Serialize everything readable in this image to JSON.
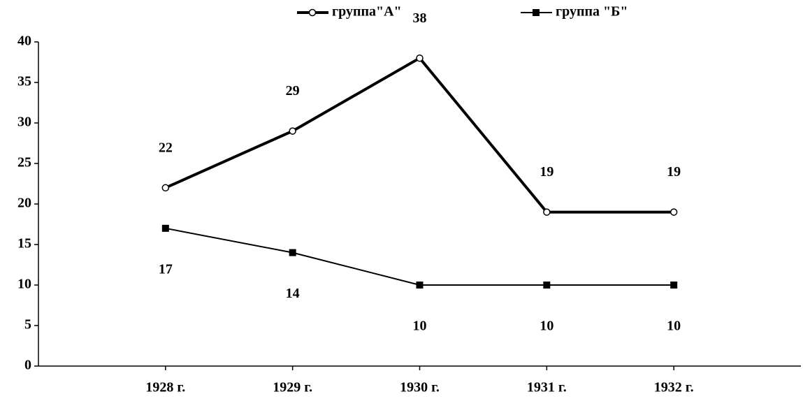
{
  "chart_data": {
    "type": "line",
    "categories": [
      "1928 г.",
      "1929 г.",
      "1930 г.",
      "1931 г.",
      "1932 г."
    ],
    "series": [
      {
        "name": "группа\"А\"",
        "color": "#000000",
        "values": [
          22,
          29,
          38,
          19,
          19
        ]
      },
      {
        "name": "группа \"Б\"",
        "color": "#000000",
        "values": [
          17,
          14,
          10,
          10,
          10
        ]
      }
    ],
    "ylim": [
      0,
      40
    ],
    "yticks": [
      0,
      5,
      10,
      15,
      20,
      25,
      30,
      35,
      40
    ],
    "legend": "top",
    "grid": false
  }
}
